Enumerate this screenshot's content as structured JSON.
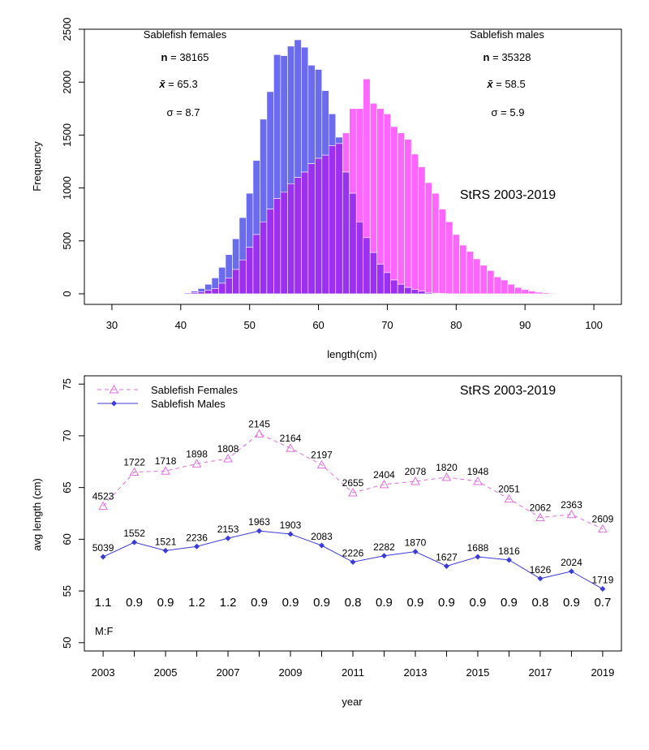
{
  "colors": {
    "female": "#ff66ff",
    "male": "#6b6bf0",
    "overlap": "#9b30f0",
    "female_line": "#e070e0",
    "male_line": "#3b3bd8"
  },
  "chart_data": [
    {
      "type": "bar",
      "subtype": "overlapping-histogram",
      "title": "",
      "xlabel": "length(cm)",
      "ylabel": "Frequency",
      "xlim": [
        26,
        104
      ],
      "ylim": [
        -100,
        2500
      ],
      "xticks": [
        "30",
        "40",
        "50",
        "60",
        "70",
        "80",
        "90",
        "100"
      ],
      "yticks": [
        "0",
        "500",
        "1000",
        "1500",
        "2000",
        "2500"
      ],
      "bin_width": 1,
      "annotation": "StRS 2003-2019",
      "series": [
        {
          "name": "Sablefish females",
          "legend": "top-left",
          "stats": {
            "n_label": "n",
            "n": "38165",
            "mean_label": "x̄",
            "mean": "65.3",
            "sd_label": "σ",
            "sd": "8.7"
          },
          "bins": [
            41,
            42,
            43,
            44,
            45,
            46,
            47,
            48,
            49,
            50,
            51,
            52,
            53,
            54,
            55,
            56,
            57,
            58,
            59,
            60,
            61,
            62,
            63,
            64,
            65,
            66,
            67,
            68,
            69,
            70,
            71,
            72,
            73,
            74,
            75,
            76,
            77,
            78,
            79,
            80,
            81,
            82,
            83,
            84,
            85,
            86,
            87,
            88,
            89,
            90,
            91,
            92,
            93,
            94,
            95
          ],
          "values": [
            8,
            12,
            20,
            35,
            50,
            100,
            150,
            230,
            320,
            440,
            560,
            680,
            800,
            900,
            960,
            1040,
            1100,
            1150,
            1230,
            1280,
            1310,
            1400,
            1420,
            1520,
            1750,
            1750,
            2030,
            1800,
            1750,
            1700,
            1580,
            1520,
            1460,
            1320,
            1200,
            1050,
            950,
            800,
            680,
            560,
            460,
            400,
            330,
            270,
            220,
            160,
            130,
            90,
            60,
            40,
            25,
            15,
            10,
            6,
            3
          ]
        },
        {
          "name": "Sablefish males",
          "legend": "top-right",
          "stats": {
            "n_label": "n",
            "n": "35328",
            "mean_label": "x̄",
            "mean": "58.5",
            "sd_label": "σ",
            "sd": "5.9"
          },
          "bins": [
            41,
            42,
            43,
            44,
            45,
            46,
            47,
            48,
            49,
            50,
            51,
            52,
            53,
            54,
            55,
            56,
            57,
            58,
            59,
            60,
            61,
            62,
            63,
            64,
            65,
            66,
            67,
            68,
            69,
            70,
            71,
            72,
            73,
            74,
            75,
            76,
            77,
            78,
            79,
            80
          ],
          "values": [
            12,
            25,
            50,
            90,
            150,
            250,
            370,
            520,
            720,
            950,
            1260,
            1650,
            1910,
            2260,
            2250,
            2340,
            2400,
            2330,
            2160,
            2120,
            1920,
            1700,
            1480,
            1150,
            950,
            680,
            530,
            390,
            280,
            200,
            130,
            90,
            60,
            40,
            25,
            12,
            6,
            3,
            1,
            0
          ]
        }
      ]
    },
    {
      "type": "line",
      "title": "",
      "xlabel": "year",
      "ylabel": "avg length (cm)",
      "xlim": [
        2002.4,
        2019.6
      ],
      "ylim": [
        49.2,
        75.8
      ],
      "xticks": [
        "2003",
        "2005",
        "2007",
        "2009",
        "2011",
        "2013",
        "2015",
        "2017",
        "2019"
      ],
      "yticks": [
        "50",
        "55",
        "60",
        "65",
        "70",
        "75"
      ],
      "annotation": "StRS 2003-2019",
      "legend_position": "top-left",
      "x": [
        2003,
        2004,
        2005,
        2006,
        2007,
        2008,
        2009,
        2010,
        2011,
        2012,
        2013,
        2014,
        2015,
        2016,
        2017,
        2018,
        2019
      ],
      "series": [
        {
          "name": "Sablefish Females",
          "values": [
            63.2,
            66.5,
            66.6,
            67.3,
            67.8,
            70.2,
            68.8,
            67.2,
            64.5,
            65.3,
            65.6,
            66.0,
            65.6,
            63.9,
            62.1,
            62.4,
            61.0
          ],
          "counts": [
            "4523",
            "1722",
            "1718",
            "1898",
            "1808",
            "2145",
            "2164",
            "2197",
            "2655",
            "2404",
            "2078",
            "1820",
            "1948",
            "2051",
            "2062",
            "2363",
            "2609"
          ]
        },
        {
          "name": "Sablefish Males",
          "values": [
            58.3,
            59.7,
            58.9,
            59.3,
            60.1,
            60.8,
            60.5,
            59.4,
            57.8,
            58.4,
            58.8,
            57.4,
            58.3,
            58.0,
            56.2,
            56.9,
            55.2
          ],
          "counts": [
            "5039",
            "1552",
            "1521",
            "2236",
            "2153",
            "1963",
            "1903",
            "2083",
            "2226",
            "2282",
            "1870",
            "1627",
            "1688",
            "1816",
            "1626",
            "2024",
            "1719"
          ]
        }
      ],
      "ratio_label": "M:F",
      "ratio_y": 53.9,
      "ratios": [
        "1.1",
        "0.9",
        "0.9",
        "1.2",
        "1.2",
        "0.9",
        "0.9",
        "0.9",
        "0.8",
        "0.9",
        "0.9",
        "0.9",
        "0.9",
        "0.9",
        "0.8",
        "0.9",
        "0.7"
      ]
    }
  ]
}
